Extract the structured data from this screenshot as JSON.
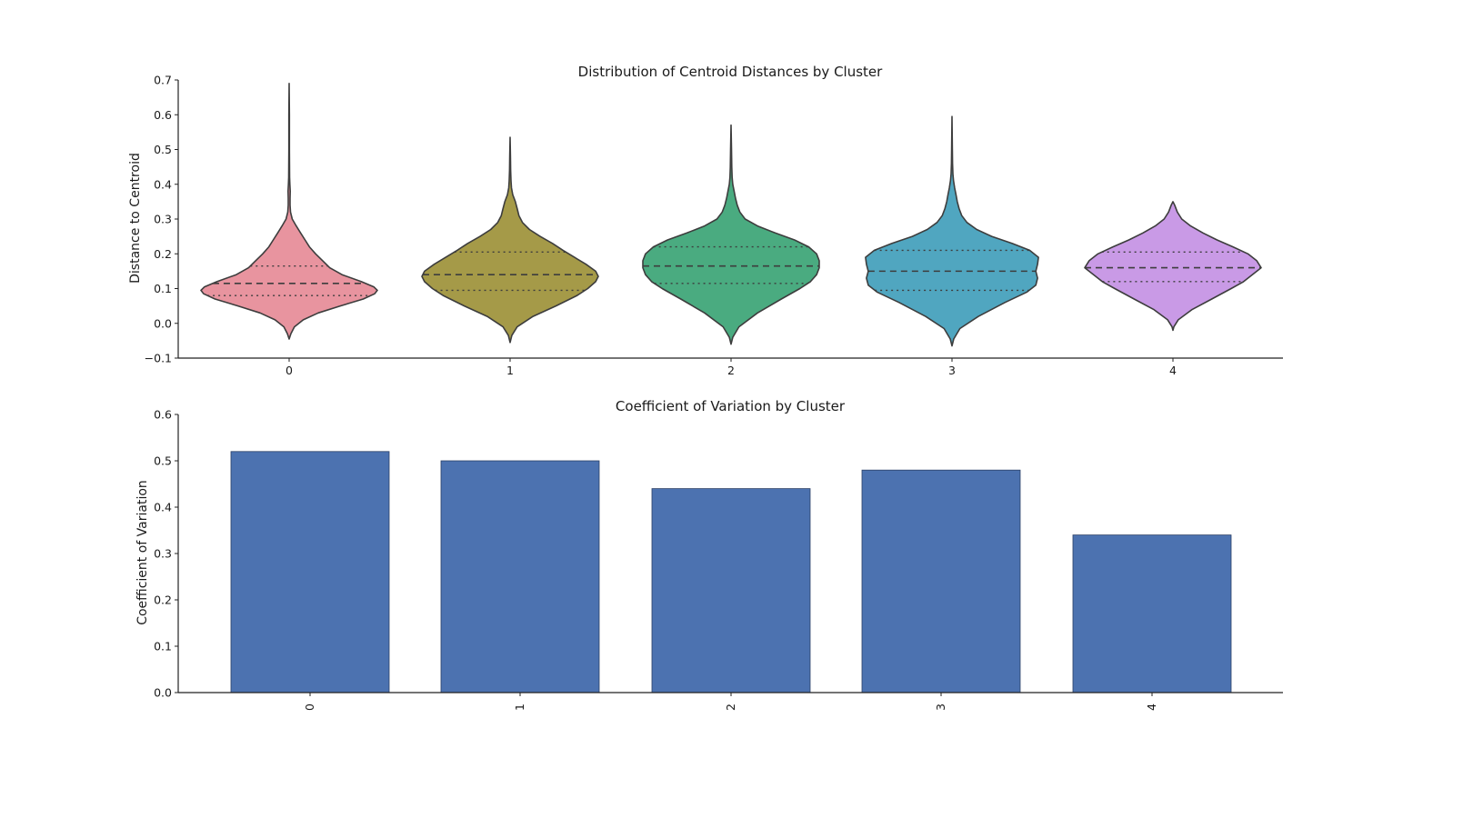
{
  "chart_data": [
    {
      "type": "violin",
      "title": "Distribution of Centroid Distances by Cluster",
      "xlabel": "",
      "ylabel": "Distance to Centroid",
      "ylim": [
        -0.1,
        0.7
      ],
      "yticks": [
        -0.1,
        0.0,
        0.1,
        0.2,
        0.3,
        0.4,
        0.5,
        0.6,
        0.7
      ],
      "ytick_labels": [
        "−0.1",
        "0.0",
        "0.1",
        "0.2",
        "0.3",
        "0.4",
        "0.5",
        "0.6",
        "0.7"
      ],
      "categories": [
        "0",
        "1",
        "2",
        "3",
        "4"
      ],
      "colors": [
        "#e8949f",
        "#a59a48",
        "#4aab80",
        "#50a6c0",
        "#c99ae6"
      ],
      "outline_color": "#3d3d3d",
      "quartiles": [
        {
          "q1": 0.08,
          "median": 0.115,
          "q3": 0.165
        },
        {
          "q1": 0.095,
          "median": 0.14,
          "q3": 0.205
        },
        {
          "q1": 0.115,
          "median": 0.165,
          "q3": 0.22
        },
        {
          "q1": 0.095,
          "median": 0.15,
          "q3": 0.21
        },
        {
          "q1": 0.12,
          "median": 0.16,
          "q3": 0.205
        }
      ],
      "density_profiles": [
        [
          [
            -0.045,
            0
          ],
          [
            -0.03,
            0.02
          ],
          [
            -0.01,
            0.06
          ],
          [
            0.01,
            0.16
          ],
          [
            0.03,
            0.33
          ],
          [
            0.05,
            0.58
          ],
          [
            0.07,
            0.84
          ],
          [
            0.085,
            0.97
          ],
          [
            0.095,
            1.0
          ],
          [
            0.105,
            0.96
          ],
          [
            0.12,
            0.82
          ],
          [
            0.14,
            0.6
          ],
          [
            0.16,
            0.46
          ],
          [
            0.18,
            0.38
          ],
          [
            0.2,
            0.3
          ],
          [
            0.22,
            0.23
          ],
          [
            0.24,
            0.18
          ],
          [
            0.26,
            0.13
          ],
          [
            0.28,
            0.08
          ],
          [
            0.3,
            0.035
          ],
          [
            0.32,
            0.015
          ],
          [
            0.34,
            0.01
          ],
          [
            0.36,
            0.01
          ],
          [
            0.38,
            0.012
          ],
          [
            0.4,
            0.008
          ],
          [
            0.42,
            0.005
          ],
          [
            0.5,
            0.003
          ],
          [
            0.6,
            0.003
          ],
          [
            0.69,
            0
          ]
        ],
        [
          [
            -0.055,
            0
          ],
          [
            -0.035,
            0.02
          ],
          [
            -0.01,
            0.08
          ],
          [
            0.02,
            0.26
          ],
          [
            0.05,
            0.52
          ],
          [
            0.08,
            0.76
          ],
          [
            0.1,
            0.88
          ],
          [
            0.12,
            0.97
          ],
          [
            0.135,
            1.0
          ],
          [
            0.15,
            0.97
          ],
          [
            0.17,
            0.86
          ],
          [
            0.19,
            0.73
          ],
          [
            0.21,
            0.6
          ],
          [
            0.23,
            0.48
          ],
          [
            0.25,
            0.34
          ],
          [
            0.27,
            0.22
          ],
          [
            0.29,
            0.14
          ],
          [
            0.31,
            0.1
          ],
          [
            0.33,
            0.08
          ],
          [
            0.35,
            0.06
          ],
          [
            0.37,
            0.03
          ],
          [
            0.39,
            0.015
          ],
          [
            0.41,
            0.01
          ],
          [
            0.44,
            0.006
          ],
          [
            0.48,
            0.004
          ],
          [
            0.535,
            0
          ]
        ],
        [
          [
            -0.06,
            0
          ],
          [
            -0.04,
            0.02
          ],
          [
            -0.01,
            0.09
          ],
          [
            0.03,
            0.3
          ],
          [
            0.07,
            0.57
          ],
          [
            0.1,
            0.78
          ],
          [
            0.12,
            0.9
          ],
          [
            0.14,
            0.97
          ],
          [
            0.16,
            1.0
          ],
          [
            0.18,
            1.0
          ],
          [
            0.2,
            0.97
          ],
          [
            0.22,
            0.88
          ],
          [
            0.24,
            0.72
          ],
          [
            0.26,
            0.5
          ],
          [
            0.28,
            0.3
          ],
          [
            0.3,
            0.16
          ],
          [
            0.32,
            0.1
          ],
          [
            0.34,
            0.07
          ],
          [
            0.36,
            0.05
          ],
          [
            0.38,
            0.035
          ],
          [
            0.4,
            0.02
          ],
          [
            0.42,
            0.012
          ],
          [
            0.45,
            0.008
          ],
          [
            0.5,
            0.005
          ],
          [
            0.57,
            0
          ]
        ],
        [
          [
            -0.065,
            0
          ],
          [
            -0.045,
            0.02
          ],
          [
            -0.015,
            0.09
          ],
          [
            0.02,
            0.3
          ],
          [
            0.06,
            0.6
          ],
          [
            0.09,
            0.85
          ],
          [
            0.11,
            0.95
          ],
          [
            0.13,
            0.97
          ],
          [
            0.15,
            0.95
          ],
          [
            0.17,
            0.97
          ],
          [
            0.19,
            0.98
          ],
          [
            0.21,
            0.88
          ],
          [
            0.23,
            0.68
          ],
          [
            0.25,
            0.45
          ],
          [
            0.27,
            0.28
          ],
          [
            0.29,
            0.17
          ],
          [
            0.31,
            0.11
          ],
          [
            0.33,
            0.08
          ],
          [
            0.35,
            0.06
          ],
          [
            0.37,
            0.045
          ],
          [
            0.39,
            0.03
          ],
          [
            0.41,
            0.018
          ],
          [
            0.43,
            0.01
          ],
          [
            0.46,
            0.006
          ],
          [
            0.5,
            0.004
          ],
          [
            0.595,
            0
          ]
        ],
        [
          [
            -0.02,
            0
          ],
          [
            -0.01,
            0.01
          ],
          [
            0.01,
            0.06
          ],
          [
            0.04,
            0.22
          ],
          [
            0.07,
            0.44
          ],
          [
            0.1,
            0.66
          ],
          [
            0.12,
            0.8
          ],
          [
            0.14,
            0.9
          ],
          [
            0.16,
            1.0
          ],
          [
            0.18,
            0.95
          ],
          [
            0.2,
            0.85
          ],
          [
            0.22,
            0.68
          ],
          [
            0.24,
            0.5
          ],
          [
            0.26,
            0.34
          ],
          [
            0.28,
            0.2
          ],
          [
            0.3,
            0.1
          ],
          [
            0.32,
            0.05
          ],
          [
            0.34,
            0.02
          ],
          [
            0.35,
            0
          ]
        ]
      ]
    },
    {
      "type": "bar",
      "title": "Coefficient of Variation by Cluster",
      "xlabel": "",
      "ylabel": "Coefficient of Variation",
      "ylim": [
        0.0,
        0.6
      ],
      "yticks": [
        0.0,
        0.1,
        0.2,
        0.3,
        0.4,
        0.5,
        0.6
      ],
      "ytick_labels": [
        "0.0",
        "0.1",
        "0.2",
        "0.3",
        "0.4",
        "0.5",
        "0.6"
      ],
      "categories": [
        "0",
        "1",
        "2",
        "3",
        "4"
      ],
      "values": [
        0.52,
        0.5,
        0.44,
        0.48,
        0.34
      ],
      "bar_color": "#4c72b0"
    }
  ]
}
